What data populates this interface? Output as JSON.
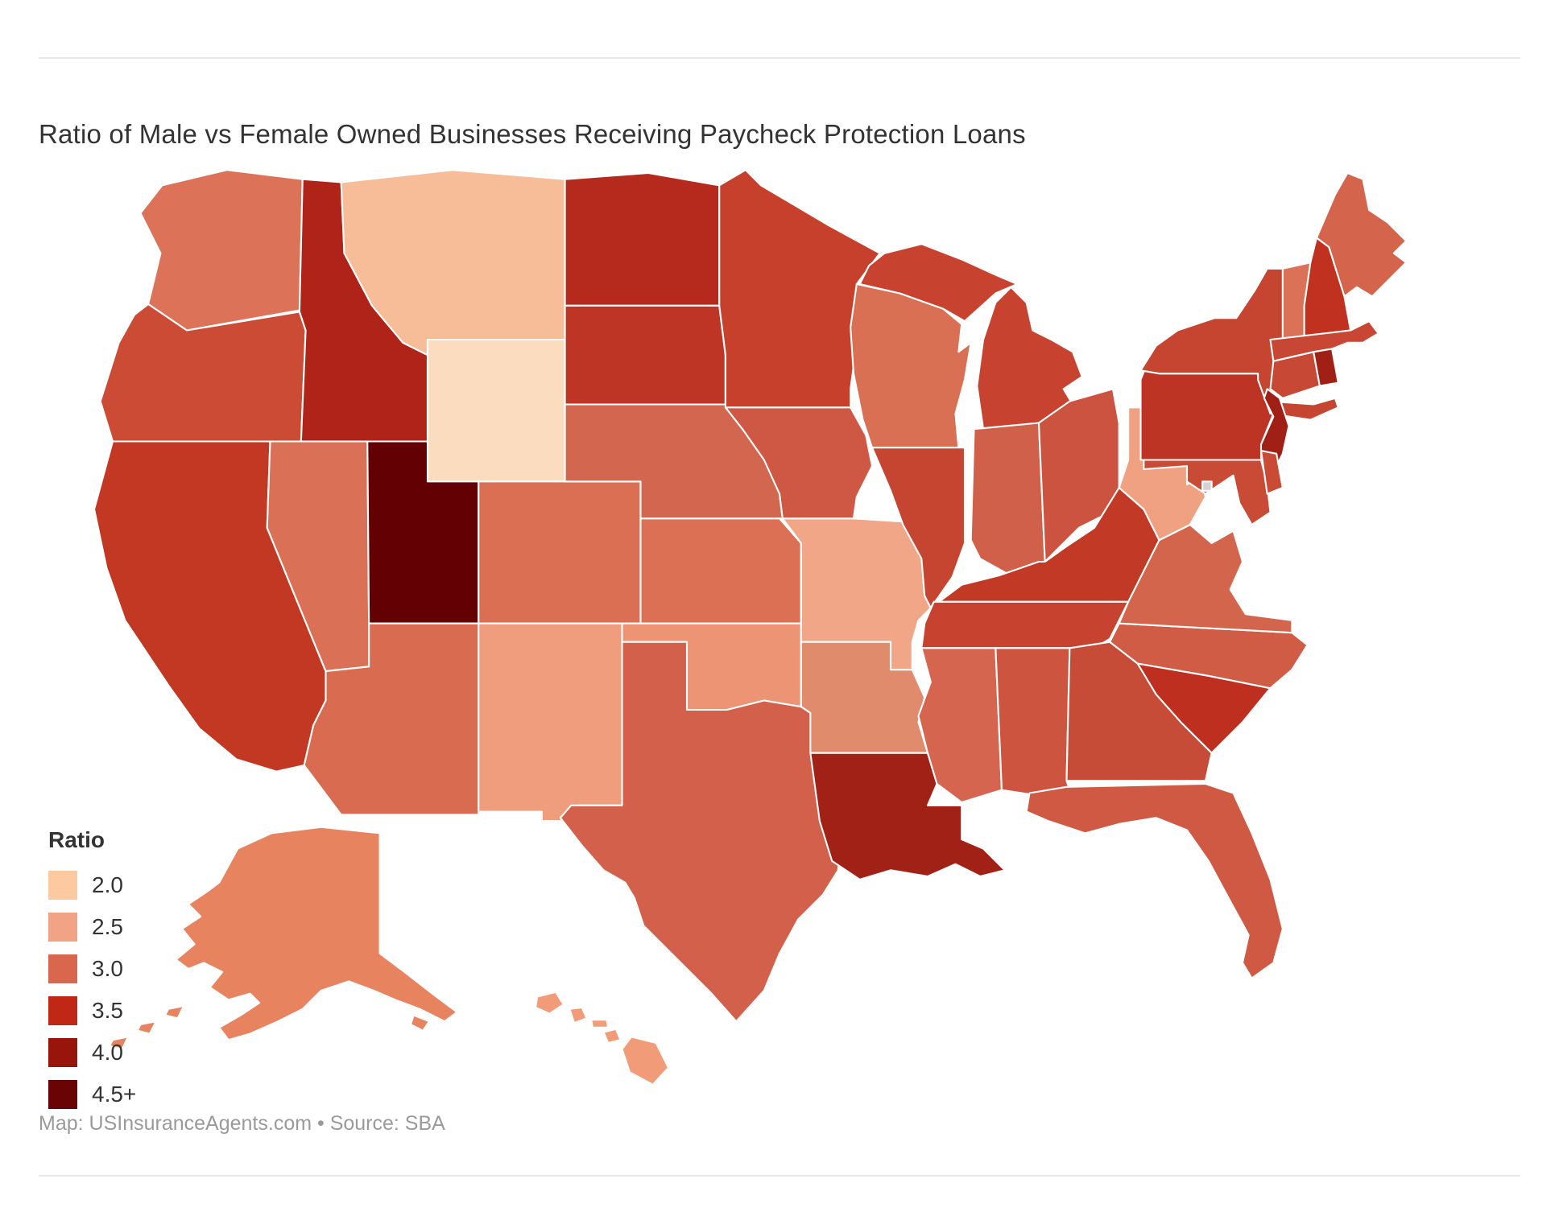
{
  "title": "Ratio of Male vs Female Owned Businesses Receiving Paycheck Protection Loans",
  "footer": {
    "text": "Map: USInsuranceAgents.com • Source: SBA"
  },
  "legend": {
    "title": "Ratio",
    "items": [
      {
        "label": "2.0",
        "color": "#FDC9A0"
      },
      {
        "label": "2.5",
        "color": "#F2A285"
      },
      {
        "label": "3.0",
        "color": "#D8674D"
      },
      {
        "label": "3.5",
        "color": "#C02714"
      },
      {
        "label": "4.0",
        "color": "#97150A"
      },
      {
        "label": "4.5+",
        "color": "#6A0304"
      }
    ]
  },
  "chart_data": {
    "type": "choropleth-map",
    "region": "United States",
    "title": "Ratio of Male vs Female Owned Businesses Receiving Paycheck Protection Loans",
    "legend_title": "Ratio",
    "legend_position": "bottom-left",
    "value_name": "male_to_female_ppp_loan_ratio",
    "scale": {
      "min": 2.0,
      "max": 4.5,
      "steps": [
        "2.0",
        "2.5",
        "3.0",
        "3.5",
        "4.0",
        "4.5+"
      ],
      "colors": [
        "#FDC9A0",
        "#F2A285",
        "#D8674D",
        "#C02714",
        "#97150A",
        "#6A0304"
      ]
    },
    "states": [
      {
        "abbr": "WA",
        "name": "Washington",
        "ratio": 3.0,
        "color": "#DC7258"
      },
      {
        "abbr": "OR",
        "name": "Oregon",
        "ratio": 3.4,
        "color": "#CC4B35"
      },
      {
        "abbr": "CA",
        "name": "California",
        "ratio": 3.6,
        "color": "#C23822"
      },
      {
        "abbr": "NV",
        "name": "Nevada",
        "ratio": 3.0,
        "color": "#DA7055"
      },
      {
        "abbr": "ID",
        "name": "Idaho",
        "ratio": 3.9,
        "color": "#B02318"
      },
      {
        "abbr": "MT",
        "name": "Montana",
        "ratio": 2.3,
        "color": "#F7BD98"
      },
      {
        "abbr": "WY",
        "name": "Wyoming",
        "ratio": 2.0,
        "color": "#FCDCBF"
      },
      {
        "abbr": "UT",
        "name": "Utah",
        "ratio": 4.7,
        "color": "#630004"
      },
      {
        "abbr": "CO",
        "name": "Colorado",
        "ratio": 3.0,
        "color": "#DB6F53"
      },
      {
        "abbr": "AZ",
        "name": "Arizona",
        "ratio": 3.0,
        "color": "#D96C50"
      },
      {
        "abbr": "NM",
        "name": "New Mexico",
        "ratio": 2.6,
        "color": "#EF9D7C"
      },
      {
        "abbr": "ND",
        "name": "North Dakota",
        "ratio": 3.8,
        "color": "#B52A1C"
      },
      {
        "abbr": "SD",
        "name": "South Dakota",
        "ratio": 3.7,
        "color": "#BE3525"
      },
      {
        "abbr": "NE",
        "name": "Nebraska",
        "ratio": 3.1,
        "color": "#D3664F"
      },
      {
        "abbr": "KS",
        "name": "Kansas",
        "ratio": 3.0,
        "color": "#DB7054"
      },
      {
        "abbr": "OK",
        "name": "Oklahoma",
        "ratio": 2.7,
        "color": "#EC9474"
      },
      {
        "abbr": "TX",
        "name": "Texas",
        "ratio": 3.1,
        "color": "#D2604A"
      },
      {
        "abbr": "MN",
        "name": "Minnesota",
        "ratio": 3.5,
        "color": "#C6402C"
      },
      {
        "abbr": "IA",
        "name": "Iowa",
        "ratio": 3.2,
        "color": "#CE5843"
      },
      {
        "abbr": "MO",
        "name": "Missouri",
        "ratio": 2.5,
        "color": "#F0A687"
      },
      {
        "abbr": "AR",
        "name": "Arkansas",
        "ratio": 2.8,
        "color": "#E08B6C"
      },
      {
        "abbr": "LA",
        "name": "Louisiana",
        "ratio": 4.1,
        "color": "#A22116"
      },
      {
        "abbr": "WI",
        "name": "Wisconsin",
        "ratio": 3.0,
        "color": "#D97054"
      },
      {
        "abbr": "IL",
        "name": "Illinois",
        "ratio": 3.5,
        "color": "#C64531"
      },
      {
        "abbr": "MI",
        "name": "Michigan",
        "ratio": 3.5,
        "color": "#C8432F"
      },
      {
        "abbr": "IN",
        "name": "Indiana",
        "ratio": 3.1,
        "color": "#D0604A"
      },
      {
        "abbr": "OH",
        "name": "Ohio",
        "ratio": 3.2,
        "color": "#CB5340"
      },
      {
        "abbr": "KY",
        "name": "Kentucky",
        "ratio": 3.6,
        "color": "#C23A26"
      },
      {
        "abbr": "TN",
        "name": "Tennessee",
        "ratio": 3.5,
        "color": "#C7432F"
      },
      {
        "abbr": "MS",
        "name": "Mississippi",
        "ratio": 3.1,
        "color": "#D5654E"
      },
      {
        "abbr": "AL",
        "name": "Alabama",
        "ratio": 3.2,
        "color": "#CD5540"
      },
      {
        "abbr": "GA",
        "name": "Georgia",
        "ratio": 3.3,
        "color": "#C74C37"
      },
      {
        "abbr": "FL",
        "name": "Florida",
        "ratio": 3.2,
        "color": "#CF5943"
      },
      {
        "abbr": "SC",
        "name": "South Carolina",
        "ratio": 3.7,
        "color": "#BE2F1F"
      },
      {
        "abbr": "NC",
        "name": "North Carolina",
        "ratio": 3.1,
        "color": "#D05C46"
      },
      {
        "abbr": "VA",
        "name": "Virginia",
        "ratio": 3.1,
        "color": "#D3654D"
      },
      {
        "abbr": "WV",
        "name": "West Virginia",
        "ratio": 2.6,
        "color": "#EFA181"
      },
      {
        "abbr": "PA",
        "name": "Pennsylvania",
        "ratio": 3.7,
        "color": "#BE3424"
      },
      {
        "abbr": "NY",
        "name": "New York",
        "ratio": 3.5,
        "color": "#C64530"
      },
      {
        "abbr": "VT",
        "name": "Vermont",
        "ratio": 3.0,
        "color": "#DB7257"
      },
      {
        "abbr": "NH",
        "name": "New Hampshire",
        "ratio": 3.7,
        "color": "#C0311F"
      },
      {
        "abbr": "ME",
        "name": "Maine",
        "ratio": 3.1,
        "color": "#D4654C"
      },
      {
        "abbr": "MA",
        "name": "Massachusetts",
        "ratio": 3.4,
        "color": "#C84734"
      },
      {
        "abbr": "CT",
        "name": "Connecticut",
        "ratio": 3.4,
        "color": "#C74834"
      },
      {
        "abbr": "RI",
        "name": "Rhode Island",
        "ratio": 4.1,
        "color": "#A02015"
      },
      {
        "abbr": "NJ",
        "name": "New Jersey",
        "ratio": 4.1,
        "color": "#A02015"
      },
      {
        "abbr": "MD",
        "name": "Maryland",
        "ratio": 3.4,
        "color": "#C94B36"
      },
      {
        "abbr": "DE",
        "name": "Delaware",
        "ratio": 3.4,
        "color": "#C94B36"
      },
      {
        "abbr": "DC",
        "name": "District of Columbia",
        "ratio": null,
        "color": "#D3D3D3"
      },
      {
        "abbr": "AK",
        "name": "Alaska",
        "ratio": 2.8,
        "color": "#E8835F"
      },
      {
        "abbr": "HI",
        "name": "Hawaii",
        "ratio": 2.6,
        "color": "#F29B78"
      }
    ]
  }
}
